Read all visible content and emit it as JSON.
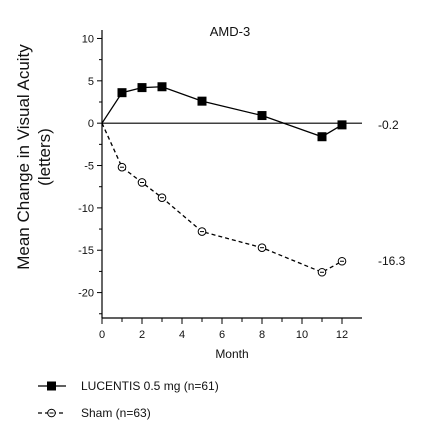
{
  "chart_data": {
    "type": "line",
    "title": "AMD-3",
    "xlabel": "Month",
    "ylabel_line1": "Mean Change in Visual Acuity",
    "ylabel_line2": "(letters)",
    "xlim": [
      0,
      13
    ],
    "ylim": [
      -23,
      11
    ],
    "xticks": [
      0,
      2,
      4,
      6,
      8,
      10,
      12
    ],
    "yticks": [
      10,
      5,
      0,
      -5,
      -10,
      -15,
      -20
    ],
    "grid": false,
    "legend_position": "bottom-left",
    "series": [
      {
        "name": "LUCENTIS 0.5 mg (n=61)",
        "style": "solid",
        "marker": "filled-square",
        "color": "#000000",
        "x": [
          0,
          1,
          2,
          3,
          5,
          8,
          11,
          12
        ],
        "y": [
          0,
          3.6,
          4.2,
          4.3,
          2.6,
          0.9,
          -1.6,
          -0.2
        ],
        "end_label": "-0.2"
      },
      {
        "name": "Sham (n=63)",
        "style": "dashed",
        "marker": "open-circle",
        "color": "#000000",
        "x": [
          0,
          1,
          2,
          3,
          5,
          8,
          11,
          12
        ],
        "y": [
          0,
          -5.2,
          -7.0,
          -8.8,
          -12.8,
          -14.7,
          -17.6,
          -16.3
        ],
        "end_label": "-16.3"
      }
    ]
  }
}
